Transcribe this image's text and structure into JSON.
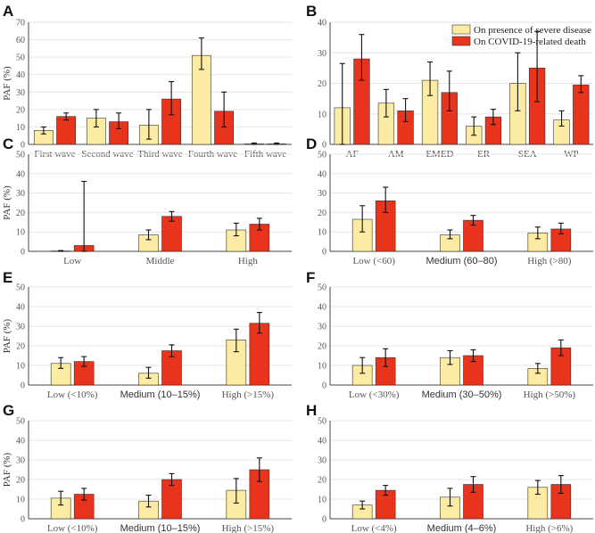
{
  "colors": {
    "severe": "#FCEBA2",
    "death": "#E8341C",
    "bar_stroke": "#333333",
    "error": "#111111"
  },
  "legend": {
    "severe_label": "On presence of severe disease",
    "death_label": "On COVID-19-related death"
  },
  "chart_data": [
    {
      "id": "A",
      "type": "bar",
      "ylabel": "PAF (%)",
      "ylim": [
        0,
        70
      ],
      "yticks": [
        0,
        10,
        20,
        30,
        40,
        50,
        60,
        70
      ],
      "categories": [
        "First wave",
        "Second wave",
        "Third wave",
        "Fourth wave",
        "Fifth wave"
      ],
      "series": [
        {
          "name": "On presence of severe disease",
          "values": [
            8,
            15,
            11,
            51,
            0.3
          ],
          "lower": [
            6,
            10,
            3,
            43,
            0
          ],
          "upper": [
            10,
            20,
            20,
            61,
            0.8
          ]
        },
        {
          "name": "On COVID-19-related death",
          "values": [
            16,
            13,
            26,
            19,
            0.3
          ],
          "lower": [
            14,
            9,
            17,
            10,
            0
          ],
          "upper": [
            18,
            18,
            36,
            30,
            0.8
          ]
        }
      ]
    },
    {
      "id": "B",
      "type": "bar",
      "ylabel": "",
      "ylim": [
        0,
        40
      ],
      "yticks": [
        0,
        10,
        20,
        30,
        40
      ],
      "categories": [
        "AF",
        "AM",
        "EMED",
        "ER",
        "SEA",
        "WP"
      ],
      "legend_position": "top-right",
      "series": [
        {
          "name": "On presence of severe disease",
          "values": [
            12,
            13.5,
            21,
            6,
            20,
            8
          ],
          "lower": [
            0,
            9,
            16,
            3,
            11,
            6
          ],
          "upper": [
            26.5,
            18,
            27,
            9,
            30,
            11
          ]
        },
        {
          "name": "On COVID-19-related death",
          "values": [
            28,
            11,
            17,
            9,
            25,
            19.5
          ],
          "lower": [
            21,
            7.5,
            11,
            6.5,
            14,
            17
          ],
          "upper": [
            36,
            15,
            24,
            11.5,
            37,
            22.5
          ]
        }
      ]
    },
    {
      "id": "C",
      "type": "bar",
      "ylabel": "PAF (%)",
      "ylim": [
        0,
        50
      ],
      "yticks": [
        0,
        10,
        20,
        30,
        40,
        50
      ],
      "categories": [
        "Low",
        "Middle",
        "High"
      ],
      "series": [
        {
          "name": "On presence of severe disease",
          "values": [
            0.2,
            8.5,
            11
          ],
          "lower": [
            0,
            6,
            8
          ],
          "upper": [
            0.4,
            11,
            14.5
          ]
        },
        {
          "name": "On COVID-19-related death",
          "values": [
            3,
            18,
            14
          ],
          "lower": [
            0,
            15.5,
            11
          ],
          "upper": [
            36,
            20.5,
            17
          ]
        }
      ]
    },
    {
      "id": "D",
      "type": "bar",
      "ylabel": "",
      "ylim": [
        0,
        50
      ],
      "yticks": [
        0,
        10,
        20,
        30,
        40,
        50
      ],
      "categories": [
        "Low (<60)",
        "Medium (60–80)",
        "High (>80)"
      ],
      "series": [
        {
          "name": "On presence of severe disease",
          "values": [
            16.5,
            8.5,
            9.5
          ],
          "lower": [
            10,
            6.5,
            6.5
          ],
          "upper": [
            23.5,
            11,
            12.5
          ]
        },
        {
          "name": "On COVID-19-related death",
          "values": [
            26,
            16,
            11.5
          ],
          "lower": [
            20,
            13.5,
            9
          ],
          "upper": [
            33,
            18.5,
            14.5
          ]
        }
      ]
    },
    {
      "id": "E",
      "type": "bar",
      "ylabel": "PAF (%)",
      "ylim": [
        0,
        50
      ],
      "yticks": [
        0,
        10,
        20,
        30,
        40,
        50
      ],
      "categories": [
        "Low (<10%)",
        "Medium (10–15%)",
        "High (>15%)"
      ],
      "series": [
        {
          "name": "On presence of severe disease",
          "values": [
            11,
            6,
            23
          ],
          "lower": [
            8.5,
            3.5,
            17
          ],
          "upper": [
            14,
            9,
            28.5
          ]
        },
        {
          "name": "On COVID-19-related death",
          "values": [
            12,
            17.5,
            31.5
          ],
          "lower": [
            9.5,
            14.5,
            26.5
          ],
          "upper": [
            14.5,
            20.5,
            37
          ]
        }
      ]
    },
    {
      "id": "F",
      "type": "bar",
      "ylabel": "",
      "ylim": [
        0,
        50
      ],
      "yticks": [
        0,
        10,
        20,
        30,
        40,
        50
      ],
      "categories": [
        "Low (<30%)",
        "Medium (30–50%)",
        "High (>50%)"
      ],
      "series": [
        {
          "name": "On presence of severe disease",
          "values": [
            10,
            14,
            8.5
          ],
          "lower": [
            6,
            10.5,
            6
          ],
          "upper": [
            14,
            17.5,
            11
          ]
        },
        {
          "name": "On COVID-19-related death",
          "values": [
            14,
            15,
            19
          ],
          "lower": [
            9.5,
            12,
            15
          ],
          "upper": [
            18.5,
            18,
            23
          ]
        }
      ]
    },
    {
      "id": "G",
      "type": "bar",
      "ylabel": "PAF (%)",
      "ylim": [
        0,
        50
      ],
      "yticks": [
        0,
        10,
        20,
        30,
        40,
        50
      ],
      "categories": [
        "Low (<10%)",
        "Medium (10–15%)",
        "High (>15%)"
      ],
      "series": [
        {
          "name": "On presence of severe disease",
          "values": [
            10.5,
            9,
            14.5
          ],
          "lower": [
            7,
            6,
            8
          ],
          "upper": [
            14,
            12,
            20.5
          ]
        },
        {
          "name": "On COVID-19-related death",
          "values": [
            12.5,
            20,
            25
          ],
          "lower": [
            9.5,
            17,
            19
          ],
          "upper": [
            15.5,
            23,
            31
          ]
        }
      ]
    },
    {
      "id": "H",
      "type": "bar",
      "ylabel": "",
      "ylim": [
        0,
        50
      ],
      "yticks": [
        0,
        10,
        20,
        30,
        40,
        50
      ],
      "categories": [
        "Low (<4%)",
        "Medium (4–6%)",
        "High (>6%)"
      ],
      "series": [
        {
          "name": "On presence of severe disease",
          "values": [
            7,
            11,
            16
          ],
          "lower": [
            5,
            6.5,
            12.5
          ],
          "upper": [
            9,
            15.5,
            19.5
          ]
        },
        {
          "name": "On COVID-19-related death",
          "values": [
            14.5,
            17.5,
            17.5
          ],
          "lower": [
            12,
            13.5,
            13
          ],
          "upper": [
            17,
            21.5,
            22
          ]
        }
      ]
    }
  ]
}
